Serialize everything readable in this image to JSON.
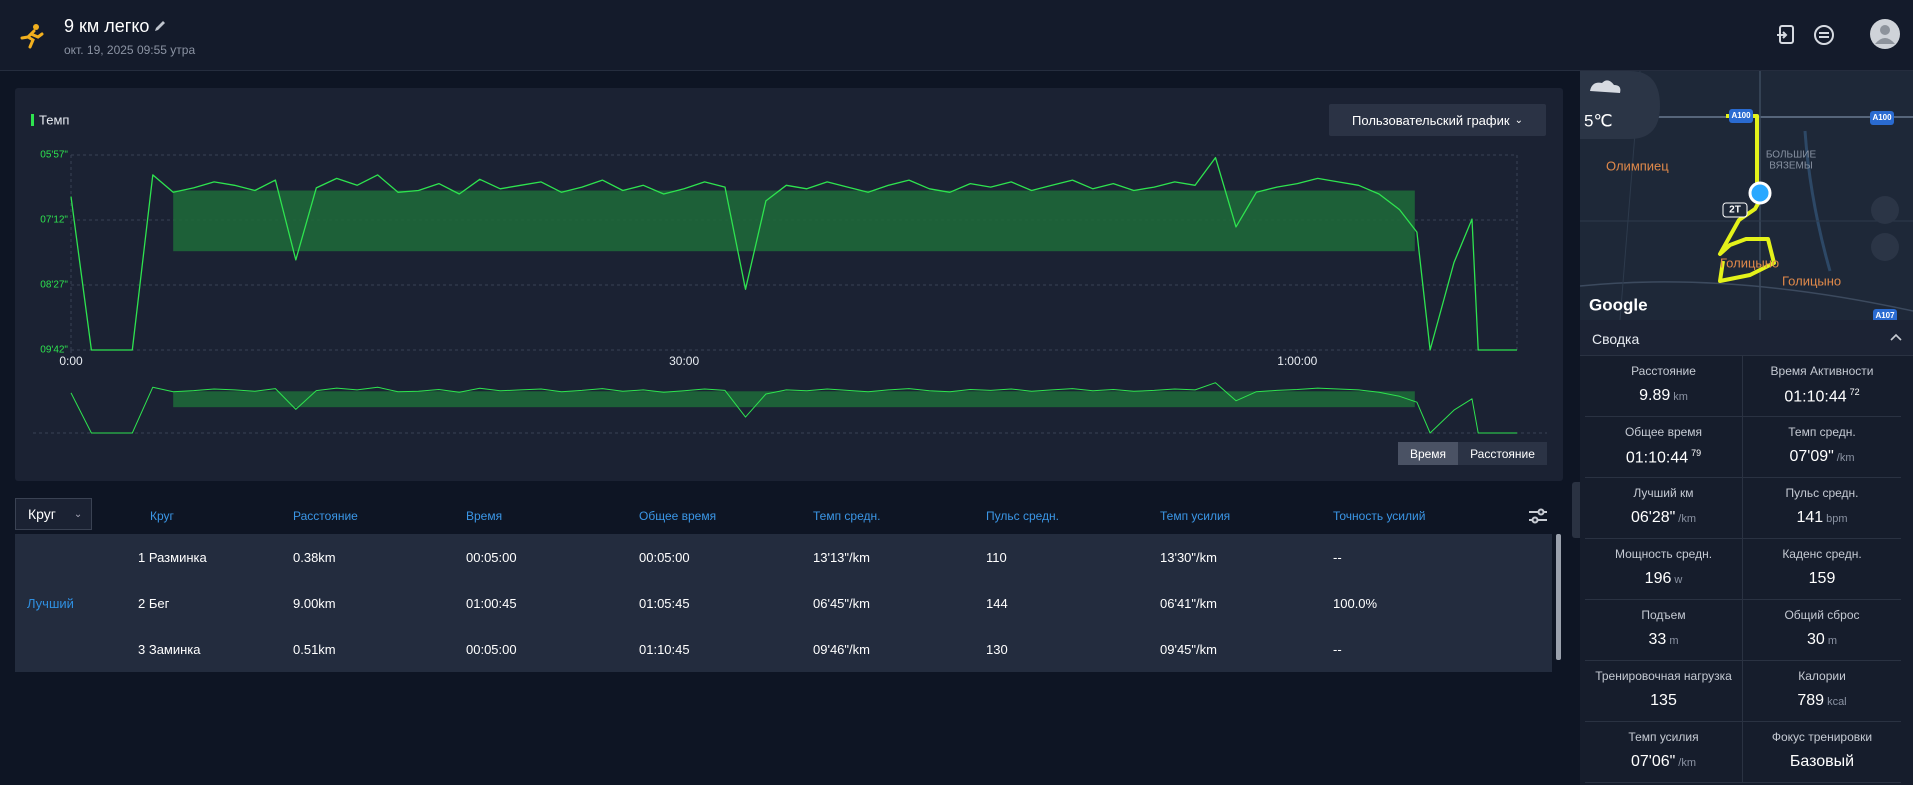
{
  "header": {
    "title": "9 км легко",
    "date": "окт. 19, 2025 09:55 утра"
  },
  "chart_data": {
    "type": "line",
    "title": "Темп",
    "button": "Пользовательский график",
    "x": [
      0,
      60,
      120,
      180,
      240,
      300,
      360,
      420,
      480,
      540,
      600,
      660,
      720,
      780,
      840,
      900,
      960,
      1020,
      1080,
      1140,
      1200,
      1260,
      1320,
      1380,
      1440,
      1500,
      1560,
      1620,
      1680,
      1740,
      1800,
      1860,
      1920,
      1980,
      2040,
      2100,
      2160,
      2220,
      2280,
      2340,
      2400,
      2460,
      2520,
      2580,
      2640,
      2700,
      2760,
      2820,
      2880,
      2940,
      3000,
      3060,
      3120,
      3180,
      3240,
      3300,
      3360,
      3420,
      3480,
      3540,
      3600,
      3660,
      3720,
      3780,
      3840,
      3900,
      3951,
      3990,
      4060,
      4113,
      4131,
      4245
    ],
    "series": [
      {
        "name": "Темп",
        "color": "#2ee34f",
        "values": [
          405,
          582,
          582,
          582,
          380,
          400,
          395,
          388,
          392,
          398,
          386,
          478,
          395,
          384,
          392,
          380,
          400,
          398,
          390,
          402,
          385,
          396,
          392,
          388,
          400,
          394,
          386,
          398,
          392,
          402,
          396,
          388,
          394,
          512,
          410,
          392,
          396,
          388,
          394,
          400,
          392,
          386,
          396,
          400,
          390,
          394,
          388,
          398,
          392,
          386,
          396,
          390,
          398,
          394,
          388,
          392,
          360,
          440,
          400,
          394,
          390,
          384,
          388,
          392,
          402,
          420,
          446,
          582,
          481,
          431,
          582,
          582
        ]
      }
    ],
    "target_zone": {
      "x": [
        300,
        3945
      ],
      "y": [
        398,
        468
      ],
      "color": "#1d6b39"
    },
    "xlim": [
      0,
      4245
    ],
    "ylim": [
      582,
      357
    ],
    "xticks": [
      {
        "value": 0,
        "label": "0:00"
      },
      {
        "value": 1800,
        "label": "30:00"
      },
      {
        "value": 3600,
        "label": "1:00:00"
      }
    ],
    "yticks": [
      {
        "value": 357,
        "label": "05'57\""
      },
      {
        "value": 432,
        "label": "07'12\""
      },
      {
        "value": 507,
        "label": "08'27\""
      },
      {
        "value": 582,
        "label": "09'42\""
      }
    ],
    "grid": true,
    "modes": [
      "Время",
      "Расстояние"
    ]
  },
  "laps": {
    "dropdown": "Круг",
    "columns": [
      "Круг",
      "Расстояние",
      "Время",
      "Общее время",
      "Темп средн.",
      "Пульс средн.",
      "Темп усилия",
      "Точность усилий"
    ],
    "rows": [
      {
        "cells": [
          "1 Разминка",
          "0.38km",
          "00:05:00",
          "00:05:00",
          "13'13\"/km",
          "110",
          "13'30\"/km",
          "--"
        ]
      },
      {
        "tag": "Лучший",
        "cells": [
          "2 Бег",
          "9.00km",
          "01:00:45",
          "01:05:45",
          "06'45\"/km",
          "144",
          "06'41\"/km",
          "100.0%"
        ]
      },
      {
        "cells": [
          "3 Заминка",
          "0.51km",
          "00:05:00",
          "01:10:45",
          "09'46\"/km",
          "130",
          "09'45\"/km",
          "--"
        ]
      }
    ]
  },
  "map": {
    "temperature": "5℃",
    "labels": [
      "Олимпиец",
      "БОЛЬШИЕ",
      "ВЯЗЕМЫ",
      "Голицыно",
      "Голицыно",
      "2Т",
      "A100",
      "A100",
      "A107"
    ],
    "attribution": "Google"
  },
  "summary": {
    "title": "Сводка",
    "items": [
      {
        "label": "Расстояние",
        "value": "9.89",
        "unit": "km"
      },
      {
        "label": "Время Активности",
        "value": "01:10:44",
        "sup": "72"
      },
      {
        "label": "Общее время",
        "value": "01:10:44",
        "sup": "79"
      },
      {
        "label": "Темп средн.",
        "value": "07'09\"",
        "unit": "/km"
      },
      {
        "label": "Лучший км",
        "value": "06'28\"",
        "unit": "/km"
      },
      {
        "label": "Пульс средн.",
        "value": "141",
        "unit": "bpm"
      },
      {
        "label": "Мощность средн.",
        "value": "196",
        "unit": "w"
      },
      {
        "label": "Каденс средн.",
        "value": "159"
      },
      {
        "label": "Подъем",
        "value": "33",
        "unit": "m"
      },
      {
        "label": "Общий сброс",
        "value": "30",
        "unit": "m"
      },
      {
        "label": "Тренировочная нагрузка",
        "value": "135"
      },
      {
        "label": "Калории",
        "value": "789",
        "unit": "kcal"
      },
      {
        "label": "Темп усилия",
        "value": "07'06\"",
        "unit": "/km"
      },
      {
        "label": "Фокус тренировки",
        "value": "Базовый"
      }
    ]
  }
}
